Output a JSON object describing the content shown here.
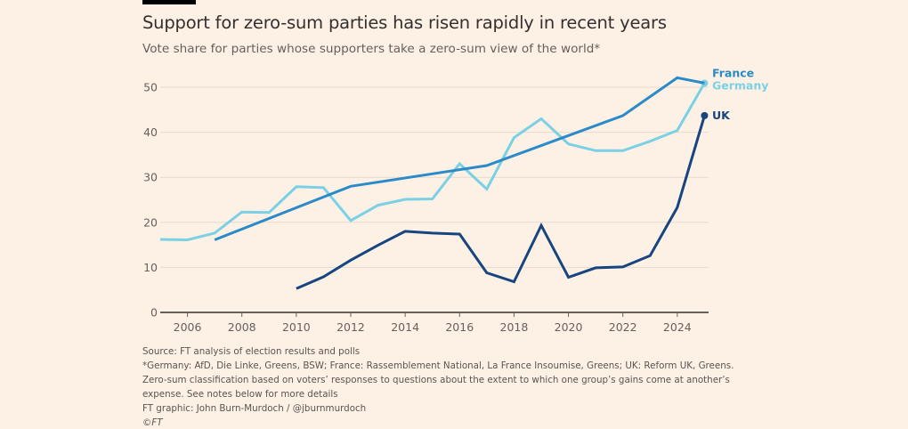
{
  "header": {
    "title": "Support for zero-sum parties has risen rapidly in recent years",
    "subtitle": "Vote share for parties whose supporters take a zero-sum view of the world*"
  },
  "footer": {
    "source": "Source: FT analysis of election results and polls",
    "note_parties": "*Germany: AfD, Die Linke, Greens, BSW; France: Rassemblement National, La France Insoumise, Greens; UK: Reform UK, Greens.",
    "note_classification_1": "Zero-sum classification based on voters’ responses to questions about the extent to which one group’s gains come at another’s",
    "note_classification_2": "expense. See notes below for more details",
    "credit": "FT graphic: John Burn-Murdoch / @jburnmurdoch",
    "copyright": "©FT"
  },
  "chart_data": {
    "type": "line",
    "title": "Support for zero-sum parties has risen rapidly in recent years",
    "subtitle": "Vote share for parties whose supporters take a zero-sum view of the world*",
    "xlabel": "",
    "ylabel": "",
    "xlim": [
      2005,
      2025.15
    ],
    "ylim": [
      0,
      50
    ],
    "yticks": [
      0,
      10,
      20,
      30,
      40,
      50
    ],
    "xticks": [
      2006,
      2008,
      2010,
      2012,
      2014,
      2016,
      2018,
      2020,
      2022,
      2024
    ],
    "grid": true,
    "legend": "direct labels at line ends (right)",
    "series": [
      {
        "name": "France",
        "color": "#2a8bc8",
        "x": [
          2007,
          2012,
          2017,
          2022,
          2024,
          2025
        ],
        "y": [
          16.1,
          28.0,
          32.6,
          43.7,
          52.1,
          50.9
        ],
        "end_marker": false
      },
      {
        "name": "Germany",
        "color": "#7ad0e4",
        "x": [
          2005,
          2006,
          2007,
          2008,
          2009,
          2010,
          2011,
          2012,
          2013,
          2014,
          2015,
          2016,
          2017,
          2018,
          2019,
          2020,
          2021,
          2022,
          2023,
          2024,
          2025
        ],
        "y": [
          16.2,
          16.1,
          17.6,
          22.3,
          22.2,
          27.9,
          27.7,
          20.4,
          23.8,
          25.1,
          25.2,
          33.0,
          27.4,
          38.8,
          43.0,
          37.4,
          35.9,
          35.9,
          38.0,
          40.4,
          50.9
        ],
        "end_marker": true
      },
      {
        "name": "UK",
        "color": "#164580",
        "x": [
          2010,
          2011,
          2012,
          2013,
          2014,
          2015,
          2016,
          2017,
          2018,
          2019,
          2020,
          2021,
          2022,
          2023,
          2024,
          2025
        ],
        "y": [
          5.3,
          7.9,
          11.6,
          14.9,
          18.0,
          17.6,
          17.4,
          8.8,
          6.8,
          19.3,
          7.8,
          9.9,
          10.1,
          12.6,
          23.3,
          43.7
        ],
        "end_marker": true
      }
    ]
  }
}
